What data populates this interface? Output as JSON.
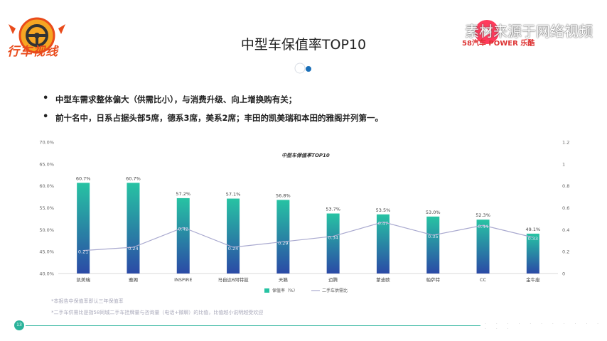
{
  "brand": {
    "logo_text": "行车视线"
  },
  "watermark": {
    "text": "素材来源于网络视频",
    "sub": "58汽车 POWER 乐酷"
  },
  "page": {
    "title": "中型车保值率TOP10",
    "bullets": [
      "中型车需求整体偏大（供需比小），与消费升级、向上增换购有关；",
      "前十名中，日系占据头部5席，德系3席，美系2席；丰田的凯美瑞和本田的雅阁并列第一。"
    ],
    "notes": [
      "*本报告中保值率即认三年保值率",
      "*二手车供需比是指58同城二手车挂牌量与咨询量（电话+微聊）的比值，比值越小说明越受欢迎"
    ],
    "page_number": "13"
  },
  "colors": {
    "bar_top": "#27c3a3",
    "bar_bottom": "#2b4aa6",
    "line": "#a9a9cf",
    "accent": "#2bb39b"
  },
  "chart_data": {
    "type": "bar",
    "title": "中型车保值率TOP10",
    "categories": [
      "凯美瑞",
      "雅阁",
      "INSPIRE",
      "马自达6阿特兹",
      "天籁",
      "迈腾",
      "蒙迪欧",
      "帕萨特",
      "CC",
      "金牛座"
    ],
    "series": [
      {
        "name": "保值率（%）",
        "type": "bar",
        "axis": "left",
        "values": [
          60.7,
          60.7,
          57.2,
          57.1,
          56.8,
          53.7,
          53.5,
          53.0,
          52.3,
          49.1
        ],
        "labels": [
          "60.7%",
          "60.7%",
          "57.2%",
          "57.1%",
          "56.8%",
          "53.7%",
          "53.5%",
          "53.0%",
          "52.3%",
          "49.1%"
        ]
      },
      {
        "name": "二手车供需比",
        "type": "line",
        "axis": "right",
        "values": [
          0.21,
          0.24,
          0.42,
          0.24,
          0.29,
          0.34,
          0.47,
          0.35,
          0.44,
          0.33
        ],
        "labels": [
          "0.21",
          "0.24",
          "0.42",
          "0.24",
          "0.29",
          "0.34",
          "0.47",
          "0.35",
          "0.44",
          "0.33"
        ]
      }
    ],
    "ylim": [
      40,
      70
    ],
    "y_ticks": [
      "40.0%",
      "45.0%",
      "50.0%",
      "55.0%",
      "60.0%",
      "65.0%",
      "70.0%"
    ],
    "y2lim": [
      0,
      1.2
    ],
    "y2_ticks": [
      "0",
      "0.2",
      "0.4",
      "0.6",
      "0.8",
      "1",
      "1.2"
    ],
    "legend_position": "bottom",
    "grid": false
  }
}
